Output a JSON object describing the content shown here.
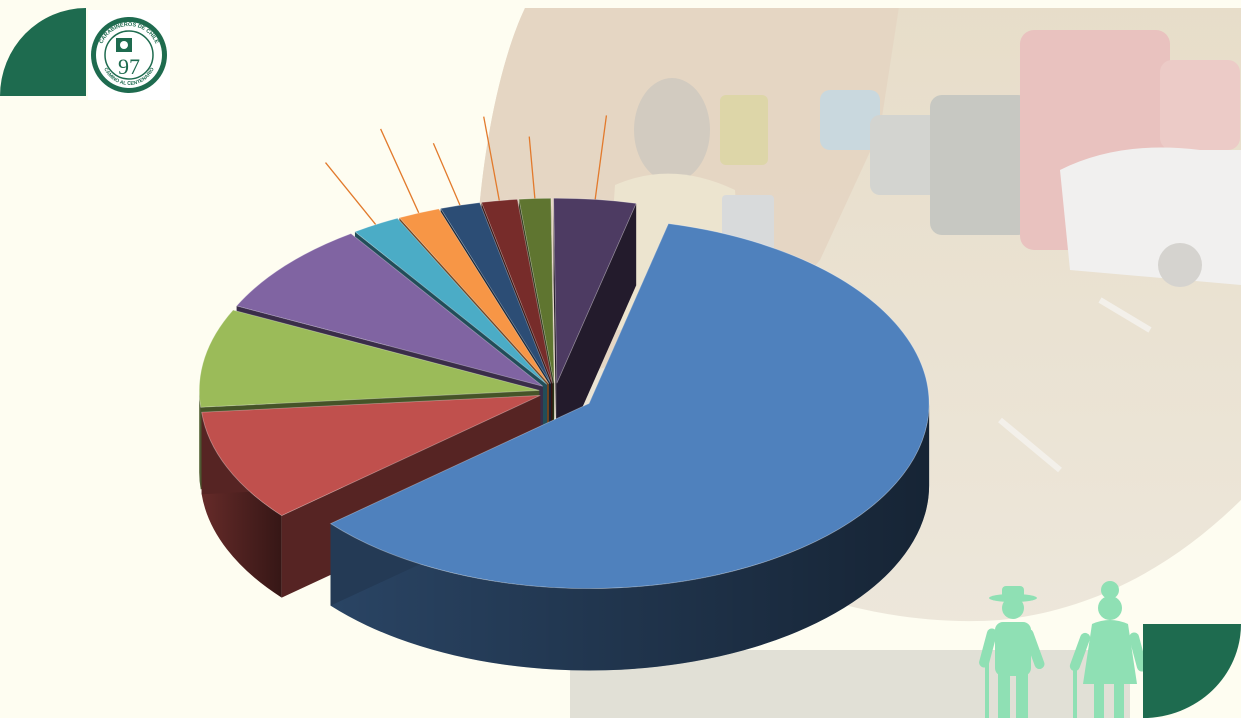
{
  "colors": {
    "brand_green": "#1e6b4f",
    "background": "#fefdf1",
    "figure_green": "#8fe0b4"
  },
  "logo": {
    "name": "seal-logo",
    "ring_text_top": "CARABINEROS DE CHILE",
    "ring_text_bottom": "CAMINO AL CENTENARIO",
    "mark": "97"
  },
  "icons": {
    "elderly": "elderly-couple-icon"
  },
  "chart_data": {
    "type": "pie",
    "style": "3d-exploded",
    "title": "",
    "show_labels": false,
    "slices": [
      {
        "value": 60.0,
        "color": "#4f81bd"
      },
      {
        "value": 9.8,
        "color": "#c0504d"
      },
      {
        "value": 8.6,
        "color": "#9bbb59"
      },
      {
        "value": 8.3,
        "color": "#8064a2"
      },
      {
        "value": 2.3,
        "color": "#4bacc6"
      },
      {
        "value": 2.0,
        "color": "#f79646"
      },
      {
        "value": 1.9,
        "color": "#2c4d75"
      },
      {
        "value": 1.7,
        "color": "#772c2a"
      },
      {
        "value": 1.5,
        "color": "#5f7530"
      },
      {
        "value": 3.9,
        "color": "#4d3b62"
      }
    ]
  }
}
